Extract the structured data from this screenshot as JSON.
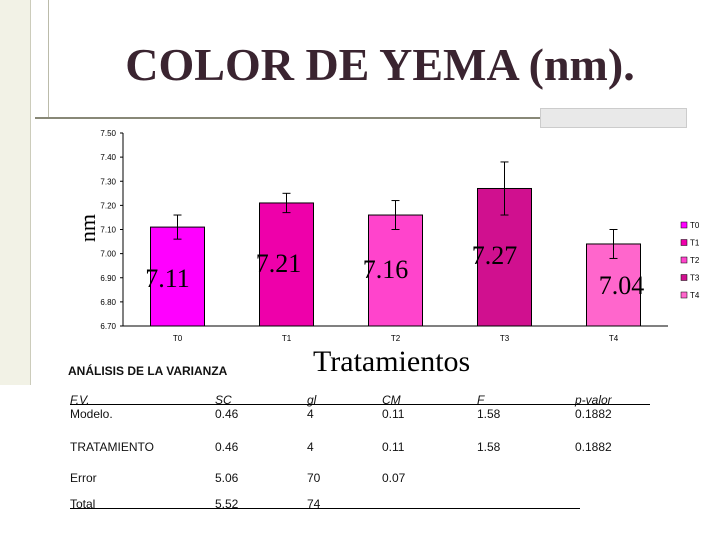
{
  "title": "COLOR DE YEMA (nm).",
  "chart_data": {
    "type": "bar",
    "categories": [
      "T0",
      "T1",
      "T2",
      "T3",
      "T4"
    ],
    "values": [
      7.11,
      7.21,
      7.16,
      7.27,
      7.04
    ],
    "value_labels": [
      "7.11",
      "7.21",
      "7.16",
      "7.27",
      "7.04"
    ],
    "error": [
      0.05,
      0.04,
      0.06,
      0.11,
      0.06
    ],
    "ylabel": "nm",
    "xlabel": "Tratamientos",
    "ylim": [
      6.7,
      7.5
    ],
    "yticks": [
      "6.70",
      "6.80",
      "6.90",
      "7.00",
      "7.10",
      "7.20",
      "7.30",
      "7.40",
      "7.50"
    ],
    "legend": [
      "T0",
      "T1",
      "T2",
      "T3",
      "T4"
    ],
    "legend_position": "right",
    "colors": [
      "#ff00ff",
      "#ee00aa",
      "#ff44cc",
      "#d0108f",
      "#ff66cc"
    ],
    "grid": false
  },
  "anova": {
    "title": "ANÁLISIS DE LA VARIANZA",
    "headers": [
      "F.V.",
      "SC",
      "gl",
      "CM",
      "F",
      "p-valor"
    ],
    "rows": [
      [
        "Modelo.",
        "0.46",
        "4",
        "0.11",
        "1.58",
        "0.1882"
      ],
      [
        "TRATAMIENTO",
        "0.46",
        "4",
        "0.11",
        "1.58",
        "0.1882"
      ],
      [
        "Error",
        "5.06",
        "70",
        "0.07",
        "",
        ""
      ],
      [
        "Total",
        "5.52",
        "74",
        "",
        "",
        ""
      ]
    ]
  }
}
